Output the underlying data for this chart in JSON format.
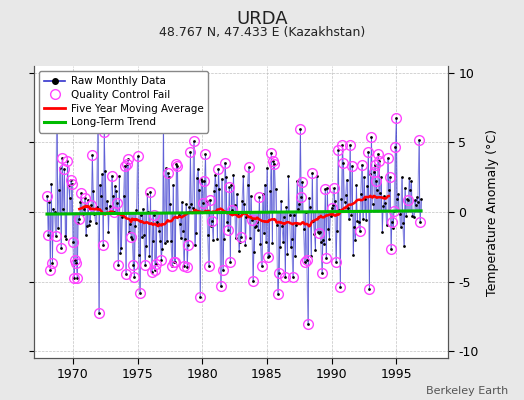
{
  "title": "URDA",
  "subtitle": "48.767 N, 47.433 E (Kazakhstan)",
  "ylabel": "Temperature Anomaly (°C)",
  "watermark": "Berkeley Earth",
  "ylim": [
    -10.5,
    10.5
  ],
  "yticks": [
    -10,
    -5,
    0,
    5,
    10
  ],
  "xlim": [
    1967.0,
    1999.0
  ],
  "xticks": [
    1970,
    1975,
    1980,
    1985,
    1990,
    1995
  ],
  "background_color": "#e8e8e8",
  "plot_bg_color": "#ffffff",
  "raw_line_color": "#3333cc",
  "raw_marker_color": "#000000",
  "qc_fail_color": "#ff44ff",
  "moving_avg_color": "#ff0000",
  "trend_color": "#00bb00",
  "seed": 12,
  "n_months": 348,
  "start_year": 1968.0,
  "trend_slope": 0.008,
  "trend_intercept": -0.15,
  "moving_avg_window": 60,
  "raw_std": 2.5,
  "qc_threshold": 3.2,
  "qc_random_prob": 0.18
}
